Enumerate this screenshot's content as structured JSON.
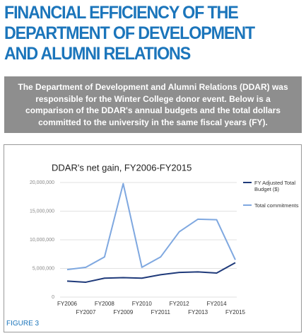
{
  "header": {
    "title": "FINANCIAL EFFICIENCY OF THE DEPARTMENT OF DEVELOPMENT AND ALUMNI RELATIONS"
  },
  "intro": "The Department of Development and Alumni Relations (DDAR) was responsible for the Winter College donor event. Below is a comparison of the DDAR's annual budgets and the total dollars committed to the university in the same fiscal years (FY).",
  "chart_data": {
    "type": "line",
    "title": "DDAR's net gain, FY2006-FY2015",
    "categories": [
      "FY2006",
      "FY2007",
      "FY2008",
      "FY2009",
      "FY2010",
      "FY2011",
      "FY2012",
      "FY2013",
      "FY2014",
      "FY2015"
    ],
    "series": [
      {
        "name": "FY Adjusted Total Budget ($)",
        "color": "#1f3a7a",
        "values": [
          2800000,
          2600000,
          3300000,
          3400000,
          3300000,
          3900000,
          4300000,
          4400000,
          4200000,
          6000000
        ]
      },
      {
        "name": "Total commitments",
        "color": "#7fa8e0",
        "values": [
          4800000,
          5200000,
          7000000,
          19800000,
          5200000,
          7000000,
          11400000,
          13600000,
          13500000,
          6500000
        ]
      }
    ],
    "ylim": [
      0,
      20000000
    ],
    "yticks": [
      0,
      {
        "value": 5000000,
        "label": "5,000,000"
      },
      {
        "value": 10000000,
        "label": "10,000,000"
      },
      {
        "value": 15000000,
        "label": "15,000,000"
      },
      {
        "value": 20000000,
        "label": "20,000,000"
      }
    ],
    "grid": true,
    "legend": "right"
  },
  "figure_label": "FIGURE 3"
}
